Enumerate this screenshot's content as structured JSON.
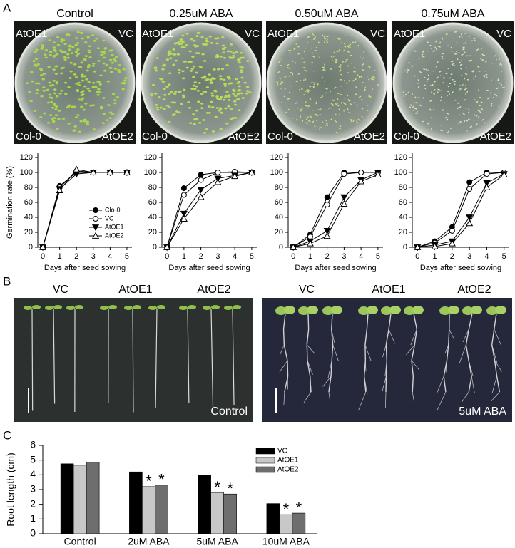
{
  "panel_labels": [
    "A",
    "B",
    "C"
  ],
  "plates": [
    {
      "title": "Control",
      "labels": [
        "AtOE1",
        "VC",
        "Col-0",
        "AtOE2"
      ]
    },
    {
      "title": "0.25uM ABA",
      "labels": [
        "AtOE1",
        "VC",
        "Col-0",
        "AtOE2"
      ]
    },
    {
      "title": "0.50uM ABA",
      "labels": [
        "AtOE1",
        "VC",
        "Col-0",
        "AtOE2"
      ]
    },
    {
      "title": "0.75uM ABA",
      "labels": [
        "AtOE1",
        "VC",
        "Col-0",
        "AtOE2"
      ]
    }
  ],
  "seedling_photos": [
    {
      "labels": [
        "VC",
        "AtOE1",
        "AtOE2"
      ],
      "condition": "Control"
    },
    {
      "labels": [
        "VC",
        "AtOE1",
        "AtOE2"
      ],
      "condition": "5uM ABA"
    }
  ],
  "chart_data": [
    {
      "type": "line",
      "ylabel": "Germination rate (%)",
      "xlabel": "Days after seed sowing",
      "x": [
        0,
        1,
        2,
        3,
        4,
        5
      ],
      "xlim": [
        -0.3,
        5.3
      ],
      "xticks": [
        0,
        1,
        2,
        3,
        4,
        5
      ],
      "ylim": [
        0,
        120
      ],
      "yticks": [
        0,
        20,
        40,
        60,
        80,
        100,
        120
      ],
      "legend": "lower right",
      "series": [
        {
          "name": "Clo-0",
          "color": "#000000",
          "marker": "circle-filled",
          "values": [
            0,
            82,
            100,
            100,
            100,
            100
          ]
        },
        {
          "name": "VC",
          "color": "#000000",
          "marker": "circle-open",
          "values": [
            0,
            80,
            102,
            100,
            100,
            100
          ]
        },
        {
          "name": "AtOE1",
          "color": "#000000",
          "marker": "triangle-down-filled",
          "values": [
            0,
            78,
            98,
            100,
            100,
            100
          ]
        },
        {
          "name": "AtOE2",
          "color": "#000000",
          "marker": "triangle-up-open",
          "values": [
            0,
            76,
            104,
            100,
            100,
            100
          ]
        }
      ]
    },
    {
      "type": "line",
      "xlabel": "Days after seed sowing",
      "x": [
        0,
        1,
        2,
        3,
        4,
        5
      ],
      "xlim": [
        -0.3,
        5.3
      ],
      "xticks": [
        0,
        1,
        2,
        3,
        4,
        5
      ],
      "ylim": [
        0,
        120
      ],
      "yticks": [
        0,
        20,
        40,
        60,
        80,
        100,
        120
      ],
      "series": [
        {
          "name": "Clo-0",
          "color": "#000000",
          "marker": "circle-filled",
          "values": [
            0,
            79,
            97,
            100,
            100,
            100
          ]
        },
        {
          "name": "VC",
          "color": "#000000",
          "marker": "circle-open",
          "values": [
            0,
            70,
            90,
            100,
            101,
            100
          ]
        },
        {
          "name": "AtOE1",
          "color": "#000000",
          "marker": "triangle-down-filled",
          "values": [
            0,
            45,
            77,
            92,
            96,
            100
          ]
        },
        {
          "name": "AtOE2",
          "color": "#000000",
          "marker": "triangle-up-open",
          "values": [
            0,
            38,
            67,
            87,
            95,
            100
          ]
        }
      ]
    },
    {
      "type": "line",
      "xlabel": "Days after seed sowing",
      "x": [
        0,
        1,
        2,
        3,
        4,
        5
      ],
      "xlim": [
        -0.3,
        5.3
      ],
      "xticks": [
        0,
        1,
        2,
        3,
        4,
        5
      ],
      "ylim": [
        0,
        120
      ],
      "yticks": [
        0,
        20,
        40,
        60,
        80,
        100,
        120
      ],
      "series": [
        {
          "name": "Clo-0",
          "color": "#000000",
          "marker": "circle-filled",
          "values": [
            0,
            17,
            67,
            100,
            100,
            100
          ]
        },
        {
          "name": "VC",
          "color": "#000000",
          "marker": "circle-open",
          "values": [
            0,
            14,
            57,
            98,
            100,
            100
          ]
        },
        {
          "name": "AtOE1",
          "color": "#000000",
          "marker": "triangle-down-filled",
          "values": [
            0,
            8,
            22,
            67,
            90,
            100
          ]
        },
        {
          "name": "AtOE2",
          "color": "#000000",
          "marker": "triangle-up-open",
          "values": [
            0,
            5,
            15,
            58,
            88,
            97
          ]
        }
      ]
    },
    {
      "type": "line",
      "xlabel": "Days after seed sowing",
      "x": [
        0,
        1,
        2,
        3,
        4,
        5
      ],
      "xlim": [
        -0.3,
        5.3
      ],
      "xticks": [
        0,
        1,
        2,
        3,
        4,
        5
      ],
      "ylim": [
        0,
        120
      ],
      "yticks": [
        0,
        20,
        40,
        60,
        80,
        100,
        120
      ],
      "series": [
        {
          "name": "Clo-0",
          "color": "#000000",
          "marker": "circle-filled",
          "values": [
            0,
            8,
            27,
            87,
            100,
            100
          ]
        },
        {
          "name": "VC",
          "color": "#000000",
          "marker": "circle-open",
          "values": [
            0,
            6,
            22,
            78,
            98,
            100
          ]
        },
        {
          "name": "AtOE1",
          "color": "#000000",
          "marker": "triangle-down-filled",
          "values": [
            0,
            3,
            8,
            40,
            86,
            98
          ]
        },
        {
          "name": "AtOE2",
          "color": "#000000",
          "marker": "triangle-up-open",
          "values": [
            0,
            1,
            5,
            32,
            80,
            97
          ]
        }
      ]
    },
    {
      "type": "bar",
      "ylabel": "Root length (cm)",
      "categories": [
        "Control",
        "2uM ABA",
        "5uM ABA",
        "10uM ABA"
      ],
      "ylim": [
        0,
        6
      ],
      "yticks": [
        0,
        1,
        2,
        3,
        4,
        5,
        6
      ],
      "legend": "upper right",
      "series": [
        {
          "name": "VC",
          "color": "#000000",
          "values": [
            4.75,
            4.2,
            4.0,
            2.05
          ]
        },
        {
          "name": "AtOE1",
          "color": "#c8c8c8",
          "values": [
            4.65,
            3.2,
            2.8,
            1.3
          ]
        },
        {
          "name": "AtOE2",
          "color": "#6e6e6e",
          "values": [
            4.85,
            3.3,
            2.7,
            1.4
          ]
        }
      ],
      "annotations": [
        {
          "text": "*",
          "series": 1,
          "category": 1
        },
        {
          "text": "*",
          "series": 2,
          "category": 1
        },
        {
          "text": "*",
          "series": 1,
          "category": 2
        },
        {
          "text": "*",
          "series": 2,
          "category": 2
        },
        {
          "text": "*",
          "series": 1,
          "category": 3
        },
        {
          "text": "*",
          "series": 2,
          "category": 3
        }
      ]
    }
  ]
}
